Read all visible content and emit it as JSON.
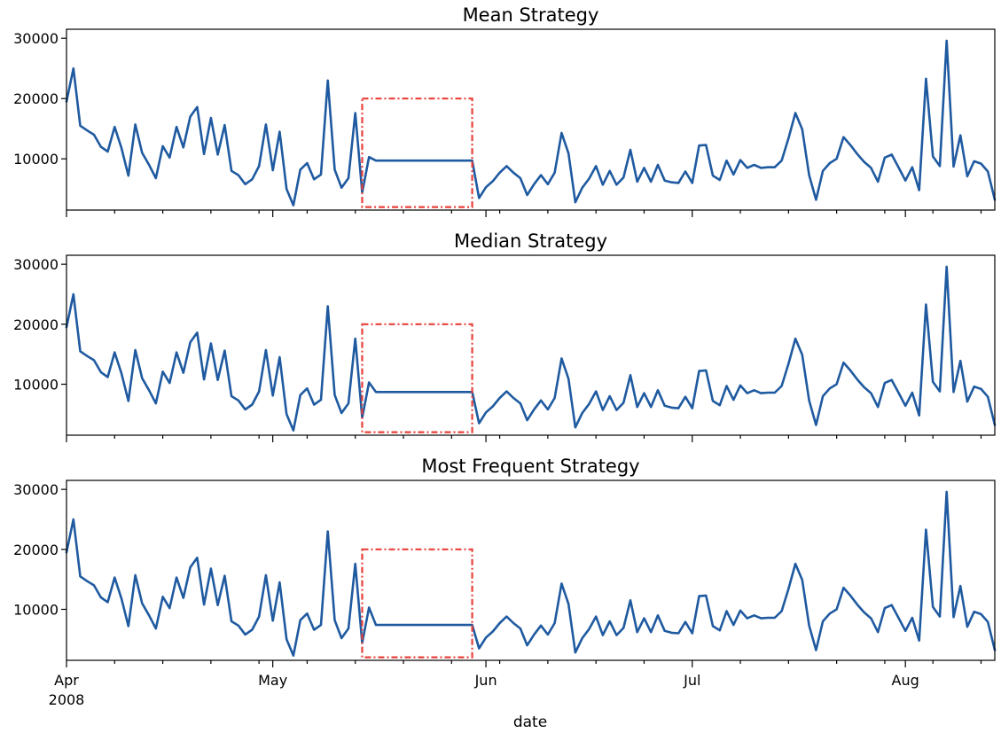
{
  "chart_data": [
    {
      "type": "line",
      "title": "Mean Strategy",
      "ylim": [
        1500,
        31500
      ],
      "yticks": [
        10000,
        20000,
        30000
      ],
      "ytick_labels": [
        "10000",
        "20000",
        "30000"
      ],
      "series": [
        {
          "fill_value": 9700
        }
      ],
      "highlight": {
        "x_start": "2008-05-14",
        "x_end": "2008-05-30",
        "y_low": 2000,
        "y_high": 20000
      },
      "colors": {
        "line": "#1f5aa0",
        "highlight": "#e8403a"
      }
    },
    {
      "type": "line",
      "title": "Median Strategy",
      "ylim": [
        1500,
        31500
      ],
      "yticks": [
        10000,
        20000,
        30000
      ],
      "ytick_labels": [
        "10000",
        "20000",
        "30000"
      ],
      "series": [
        {
          "fill_value": 8700
        }
      ],
      "highlight": {
        "x_start": "2008-05-14",
        "x_end": "2008-05-30",
        "y_low": 2000,
        "y_high": 20000
      },
      "colors": {
        "line": "#1f5aa0",
        "highlight": "#e8403a"
      }
    },
    {
      "type": "line",
      "title": "Most Frequent Strategy",
      "ylim": [
        1500,
        31500
      ],
      "yticks": [
        10000,
        20000,
        30000
      ],
      "ytick_labels": [
        "10000",
        "20000",
        "30000"
      ],
      "series": [
        {
          "fill_value": 7400
        }
      ],
      "highlight": {
        "x_start": "2008-05-14",
        "x_end": "2008-05-30",
        "y_low": 2000,
        "y_high": 20000
      },
      "colors": {
        "line": "#1f5aa0",
        "highlight": "#e8403a"
      }
    }
  ],
  "shared_x": {
    "xlabel": "date",
    "xlim": [
      "2008-04-01",
      "2008-08-14"
    ],
    "major_ticks": [
      {
        "date": "2008-04-01",
        "label": "Apr",
        "sublabel": "2008"
      },
      {
        "date": "2008-05-01",
        "label": "May",
        "sublabel": ""
      },
      {
        "date": "2008-06-01",
        "label": "Jun",
        "sublabel": ""
      },
      {
        "date": "2008-07-01",
        "label": "Jul",
        "sublabel": ""
      },
      {
        "date": "2008-08-01",
        "label": "Aug",
        "sublabel": ""
      }
    ],
    "minor_ticks": [
      "2008-04-08",
      "2008-04-15",
      "2008-04-22",
      "2008-04-29",
      "2008-05-06",
      "2008-05-13",
      "2008-05-20",
      "2008-05-27",
      "2008-06-03",
      "2008-06-10",
      "2008-06-17",
      "2008-06-24",
      "2008-07-08",
      "2008-07-15",
      "2008-07-22",
      "2008-07-29",
      "2008-08-05",
      "2008-08-12"
    ]
  },
  "observed_series": [
    [
      "2008-04-01",
      19500
    ],
    [
      "2008-04-02",
      25000
    ],
    [
      "2008-04-03",
      15500
    ],
    [
      "2008-04-04",
      14700
    ],
    [
      "2008-04-05",
      14000
    ],
    [
      "2008-04-06",
      12000
    ],
    [
      "2008-04-07",
      11200
    ],
    [
      "2008-04-08",
      15300
    ],
    [
      "2008-04-09",
      11800
    ],
    [
      "2008-04-10",
      7200
    ],
    [
      "2008-04-11",
      15700
    ],
    [
      "2008-04-12",
      11000
    ],
    [
      "2008-04-13",
      9000
    ],
    [
      "2008-04-14",
      6800
    ],
    [
      "2008-04-15",
      12100
    ],
    [
      "2008-04-16",
      10200
    ],
    [
      "2008-04-17",
      15300
    ],
    [
      "2008-04-18",
      11900
    ],
    [
      "2008-04-19",
      17000
    ],
    [
      "2008-04-20",
      18600
    ],
    [
      "2008-04-21",
      10800
    ],
    [
      "2008-04-22",
      16800
    ],
    [
      "2008-04-23",
      10700
    ],
    [
      "2008-04-24",
      15600
    ],
    [
      "2008-04-25",
      8000
    ],
    [
      "2008-04-26",
      7300
    ],
    [
      "2008-04-27",
      5800
    ],
    [
      "2008-04-28",
      6600
    ],
    [
      "2008-04-29",
      8800
    ],
    [
      "2008-04-30",
      15700
    ],
    [
      "2008-05-01",
      8100
    ],
    [
      "2008-05-02",
      14500
    ],
    [
      "2008-05-03",
      5000
    ],
    [
      "2008-05-04",
      2300
    ],
    [
      "2008-05-05",
      8200
    ],
    [
      "2008-05-06",
      9300
    ],
    [
      "2008-05-07",
      6600
    ],
    [
      "2008-05-08",
      7400
    ],
    [
      "2008-05-09",
      23000
    ],
    [
      "2008-05-10",
      8200
    ],
    [
      "2008-05-11",
      5200
    ],
    [
      "2008-05-12",
      6800
    ],
    [
      "2008-05-13",
      17600
    ],
    [
      "2008-05-14",
      4400
    ],
    [
      "2008-05-15",
      10300
    ],
    [
      "2008-05-31",
      3500
    ],
    [
      "2008-06-01",
      5300
    ],
    [
      "2008-06-02",
      6300
    ],
    [
      "2008-06-03",
      7700
    ],
    [
      "2008-06-04",
      8800
    ],
    [
      "2008-06-05",
      7700
    ],
    [
      "2008-06-06",
      6800
    ],
    [
      "2008-06-07",
      4000
    ],
    [
      "2008-06-08",
      5800
    ],
    [
      "2008-06-09",
      7300
    ],
    [
      "2008-06-10",
      5800
    ],
    [
      "2008-06-11",
      7700
    ],
    [
      "2008-06-12",
      14300
    ],
    [
      "2008-06-13",
      10900
    ],
    [
      "2008-06-14",
      2800
    ],
    [
      "2008-06-15",
      5200
    ],
    [
      "2008-06-16",
      6700
    ],
    [
      "2008-06-17",
      8800
    ],
    [
      "2008-06-18",
      5700
    ],
    [
      "2008-06-19",
      8000
    ],
    [
      "2008-06-20",
      5700
    ],
    [
      "2008-06-21",
      6900
    ],
    [
      "2008-06-22",
      11500
    ],
    [
      "2008-06-23",
      6200
    ],
    [
      "2008-06-24",
      8500
    ],
    [
      "2008-06-25",
      6200
    ],
    [
      "2008-06-26",
      9000
    ],
    [
      "2008-06-27",
      6400
    ],
    [
      "2008-06-28",
      6100
    ],
    [
      "2008-06-29",
      6000
    ],
    [
      "2008-06-30",
      7900
    ],
    [
      "2008-07-01",
      6000
    ],
    [
      "2008-07-02",
      12200
    ],
    [
      "2008-07-03",
      12300
    ],
    [
      "2008-07-04",
      7200
    ],
    [
      "2008-07-05",
      6500
    ],
    [
      "2008-07-06",
      9700
    ],
    [
      "2008-07-07",
      7400
    ],
    [
      "2008-07-08",
      9800
    ],
    [
      "2008-07-09",
      8500
    ],
    [
      "2008-07-10",
      9000
    ],
    [
      "2008-07-11",
      8500
    ],
    [
      "2008-07-12",
      8600
    ],
    [
      "2008-07-13",
      8600
    ],
    [
      "2008-07-14",
      9700
    ],
    [
      "2008-07-15",
      13400
    ],
    [
      "2008-07-16",
      17600
    ],
    [
      "2008-07-17",
      14900
    ],
    [
      "2008-07-18",
      7300
    ],
    [
      "2008-07-19",
      3200
    ],
    [
      "2008-07-20",
      8000
    ],
    [
      "2008-07-21",
      9300
    ],
    [
      "2008-07-22",
      10000
    ],
    [
      "2008-07-23",
      13600
    ],
    [
      "2008-07-24",
      12300
    ],
    [
      "2008-07-25",
      10800
    ],
    [
      "2008-07-26",
      9500
    ],
    [
      "2008-07-27",
      8500
    ],
    [
      "2008-07-28",
      6200
    ],
    [
      "2008-07-29",
      10200
    ],
    [
      "2008-07-30",
      10700
    ],
    [
      "2008-07-31",
      8600
    ],
    [
      "2008-08-01",
      6400
    ],
    [
      "2008-08-02",
      8600
    ],
    [
      "2008-08-03",
      4800
    ],
    [
      "2008-08-04",
      23300
    ],
    [
      "2008-08-05",
      10400
    ],
    [
      "2008-08-06",
      8800
    ],
    [
      "2008-08-07",
      29600
    ],
    [
      "2008-08-08",
      8700
    ],
    [
      "2008-08-09",
      13900
    ],
    [
      "2008-08-10",
      7100
    ],
    [
      "2008-08-11",
      9600
    ],
    [
      "2008-08-12",
      9200
    ],
    [
      "2008-08-13",
      7900
    ],
    [
      "2008-08-14",
      3200
    ]
  ]
}
